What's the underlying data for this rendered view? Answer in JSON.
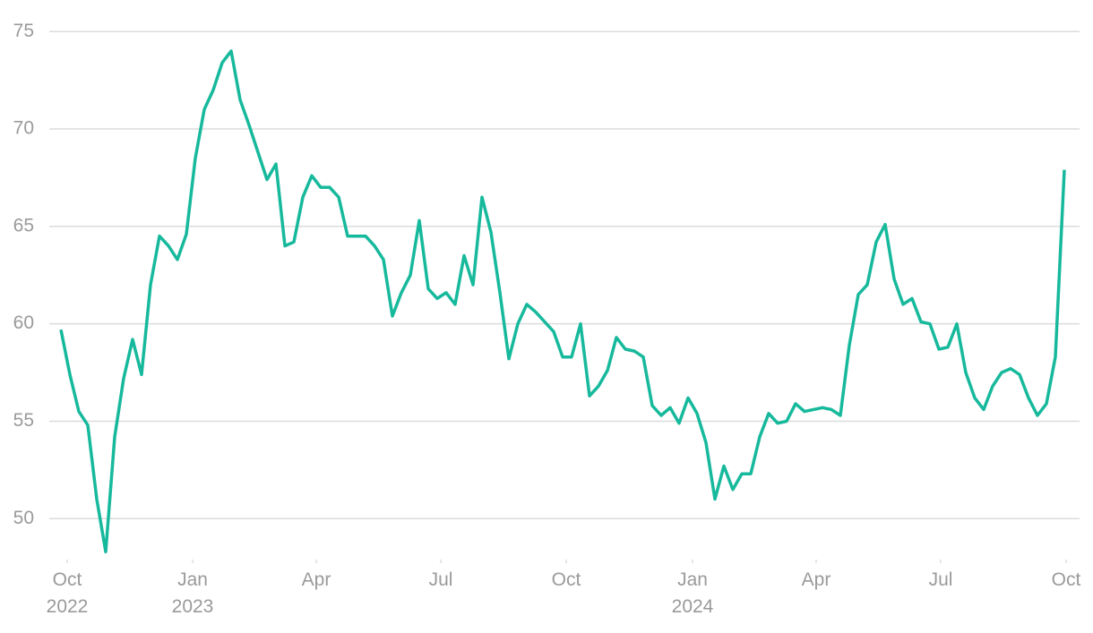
{
  "chart_data": {
    "type": "line",
    "values": [
      59.7,
      57.4,
      55.5,
      54.8,
      51,
      48.3,
      54.2,
      57.2,
      59.2,
      57.4,
      62,
      64.5,
      64,
      63.3,
      64.6,
      68.5,
      71,
      72,
      73.4,
      74,
      71.5,
      70.2,
      68.8,
      67.4,
      68.2,
      64,
      64.2,
      66.5,
      67.6,
      67,
      67,
      66.5,
      64.5,
      64.5,
      64.5,
      64,
      63.3,
      60.4,
      61.6,
      62.5,
      65.3,
      61.8,
      61.3,
      61.6,
      61,
      63.5,
      62,
      66.5,
      64.7,
      61.6,
      58.2,
      60,
      61,
      60.6,
      60.1,
      59.6,
      58.3,
      58.3,
      60,
      56.3,
      56.8,
      57.6,
      59.3,
      58.7,
      58.6,
      58.3,
      55.8,
      55.3,
      55.7,
      54.9,
      56.2,
      55.4,
      53.9,
      51,
      52.7,
      51.5,
      52.3,
      52.3,
      54.2,
      55.4,
      54.9,
      55,
      55.9,
      55.5,
      55.6,
      55.7,
      55.6,
      55.3,
      58.9,
      61.5,
      62,
      64.2,
      65.1,
      62.3,
      61,
      61.3,
      60.1,
      60,
      58.7,
      58.8,
      60,
      57.5,
      56.2,
      55.6,
      56.8,
      57.5,
      57.7,
      57.4,
      56.2,
      55.3,
      55.9,
      58.3,
      67.9
    ],
    "color": "#17b99c",
    "xlim": [
      -1.3,
      113.7
    ],
    "xticks": [
      {
        "value": 0.7,
        "label": "Oct\n2022"
      },
      {
        "value": 14.7,
        "label": "Jan\n2023"
      },
      {
        "value": 28.5,
        "label": "Apr"
      },
      {
        "value": 42.4,
        "label": "Jul"
      },
      {
        "value": 56.4,
        "label": "Oct"
      },
      {
        "value": 70.5,
        "label": "Jan\n2024"
      },
      {
        "value": 84.3,
        "label": "Apr"
      },
      {
        "value": 98.2,
        "label": "Jul"
      },
      {
        "value": 112.2,
        "label": "Oct"
      }
    ],
    "ylim": [
      47.9,
      75.7
    ],
    "yticks": [
      50,
      55,
      60,
      65,
      70,
      75
    ],
    "grid": true
  }
}
